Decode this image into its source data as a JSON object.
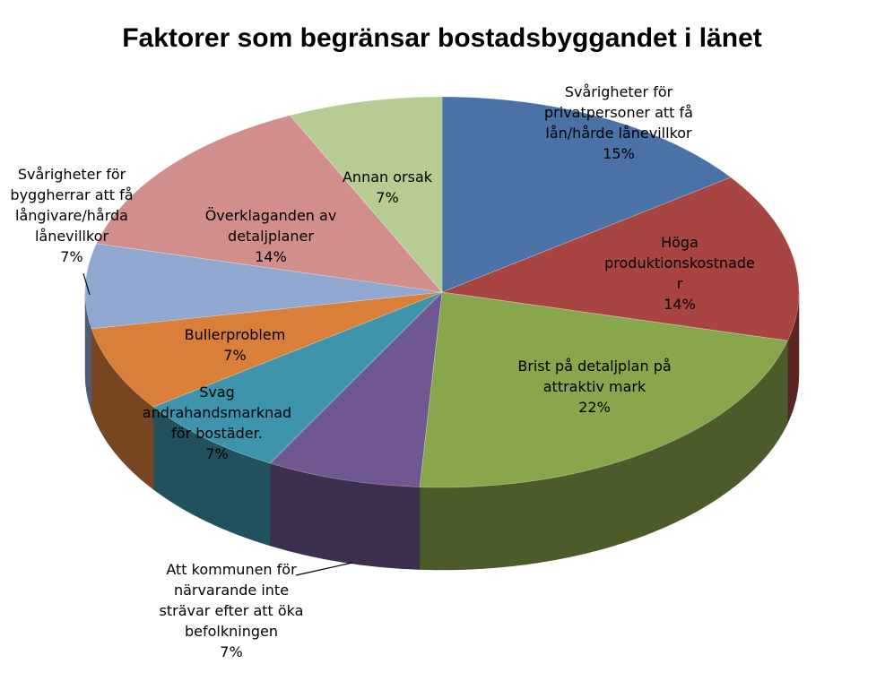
{
  "chart_data": {
    "type": "pie",
    "title": "Faktorer som begränsar bostadsbyggandet i länet",
    "slices": [
      {
        "label": [
          "Svårigheter för",
          "privatpersoner att få",
          "lån/hårde lånevillkor"
        ],
        "pct_label": "15%",
        "value": 15,
        "color": "#4A72A6"
      },
      {
        "label": [
          "Höga",
          "produktionskostnade",
          "r"
        ],
        "pct_label": "14%",
        "value": 14,
        "color": "#A84442"
      },
      {
        "label": [
          "Brist på detaljplan på",
          "attraktiv mark"
        ],
        "pct_label": "22%",
        "value": 22,
        "color": "#88A64B"
      },
      {
        "label": [
          "Att kommunen för",
          "närvarande inte",
          "strävar efter att öka",
          "befolkningen"
        ],
        "pct_label": "7%",
        "value": 7,
        "color": "#6F578F"
      },
      {
        "label": [
          "Svag",
          "andrahandsmarknad",
          "för bostäder."
        ],
        "pct_label": "7%",
        "value": 7,
        "color": "#3E94AA"
      },
      {
        "label": [
          "Bullerproblem"
        ],
        "pct_label": "7%",
        "value": 7,
        "color": "#D97F3A"
      },
      {
        "label": [
          "Svårigheter för",
          "byggherrar att få",
          "långivare/hårda",
          "lånevillkor"
        ],
        "pct_label": "7%",
        "value": 7,
        "color": "#91A8D0"
      },
      {
        "label": [
          "Överklaganden av",
          "detaljplaner"
        ],
        "pct_label": "14%",
        "value": 14,
        "color": "#D28E8D"
      },
      {
        "label": [
          "Annan orsak"
        ],
        "pct_label": "7%",
        "value": 7,
        "color": "#B7CC93"
      }
    ]
  }
}
